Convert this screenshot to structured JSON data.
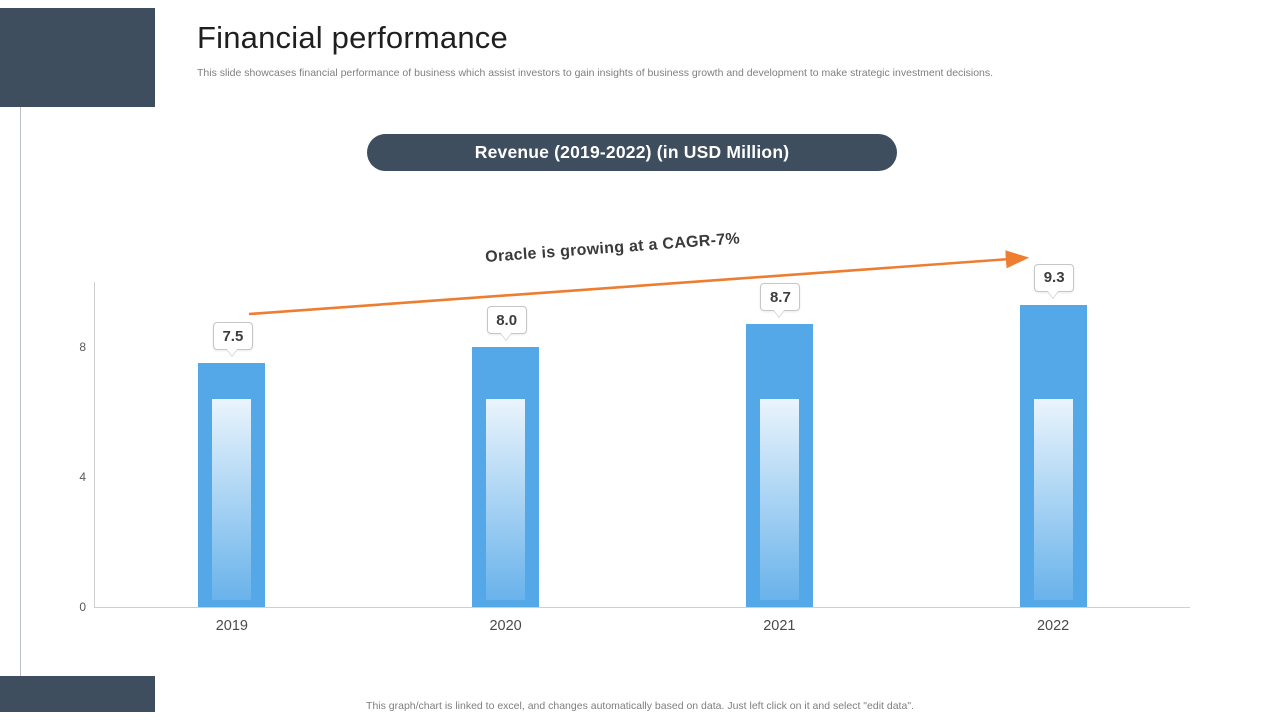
{
  "slide": {
    "title": "Financial performance",
    "subtitle": "This slide showcases financial performance of business which assist investors to gain insights of business growth and development to make strategic investment decisions.",
    "footer": "This graph/chart is linked to excel, and changes automatically based on data. Just left click on it and select \"edit data\".",
    "accent_dark": "#3E4E5E",
    "bar_color": "#54A8E8",
    "arrow_color": "#ED7D31"
  },
  "chart_data": {
    "type": "bar",
    "title": "Revenue (2019-2022) (in USD Million)",
    "categories": [
      "2019",
      "2020",
      "2021",
      "2022"
    ],
    "values": [
      7.5,
      8.0,
      8.7,
      9.3
    ],
    "data_labels": [
      "7.5",
      "8.0",
      "8.7",
      "9.3"
    ],
    "annotation": "Oracle is growing at a CAGR-7%",
    "xlabel": "",
    "ylabel": "",
    "yticks": [
      0,
      4,
      8
    ],
    "ylim": [
      0,
      10
    ],
    "grid": false,
    "legend_position": "none"
  }
}
